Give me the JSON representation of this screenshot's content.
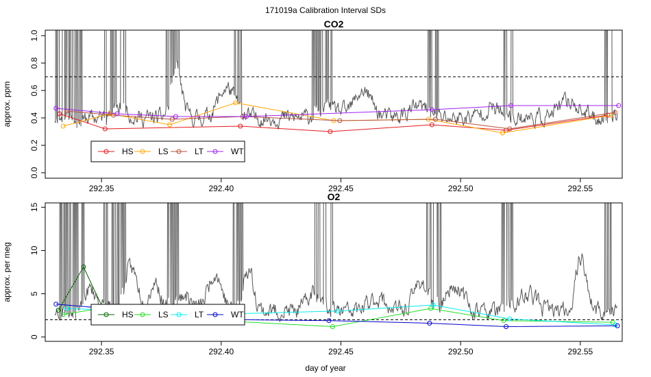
{
  "figure_title": "171019a   Calibration Interval SDs",
  "xlabel": "day of year",
  "chart_data": [
    {
      "type": "line",
      "title": "CO2",
      "ylabel": "approx. ppm",
      "xlabel": "",
      "xlim": [
        292.3265,
        292.5675
      ],
      "ylim": [
        -0.04,
        1.04
      ],
      "xticks": [
        292.35,
        292.4,
        292.45,
        292.5,
        292.55
      ],
      "xtick_labels": [
        "292.35",
        "292.40",
        "292.45",
        "292.50",
        "292.55"
      ],
      "yticks": [
        0.0,
        0.2,
        0.4,
        0.6,
        0.8,
        1.0
      ],
      "ytick_labels": [
        "0.0",
        "0.2",
        "0.4",
        "0.6",
        "0.8",
        "1.0"
      ],
      "reference_line": 0.7,
      "legend_position": "bottom-left",
      "colors": {
        "trace": "#555555",
        "HS": "#e41a1c",
        "LS": "#ffa500",
        "LT": "#b5503c",
        "WT": "#a020f0"
      },
      "trace": {
        "base": 0.4,
        "noise": 0.06,
        "seed": 11,
        "humps": [
          [
            292.357,
            0.1,
            0.004
          ],
          [
            292.381,
            0.35,
            0.003
          ],
          [
            292.402,
            0.22,
            0.005
          ],
          [
            292.445,
            0.08,
            0.006
          ],
          [
            292.459,
            0.2,
            0.005
          ],
          [
            292.482,
            0.08,
            0.006
          ],
          [
            292.513,
            0.07,
            0.006
          ],
          [
            292.545,
            0.12,
            0.006
          ]
        ],
        "spike_clusters": [
          [
            292.331,
            292.343
          ],
          [
            292.351,
            292.36
          ],
          [
            292.377,
            292.383
          ],
          [
            292.405,
            292.409
          ],
          [
            292.438,
            292.447
          ],
          [
            292.486,
            292.492
          ],
          [
            292.516,
            292.522
          ],
          [
            292.56,
            292.564
          ]
        ]
      },
      "series": [
        {
          "name": "HS",
          "x": [
            292.3325,
            292.3515,
            292.408,
            292.4455,
            292.488,
            292.519,
            292.5615
          ],
          "y": [
            0.43,
            0.32,
            0.34,
            0.3,
            0.35,
            0.31,
            0.42
          ]
        },
        {
          "name": "LS",
          "x": [
            292.334,
            292.3535,
            292.3785,
            292.406,
            292.447,
            292.4865,
            292.5175,
            292.563
          ],
          "y": [
            0.34,
            0.43,
            0.35,
            0.51,
            0.38,
            0.39,
            0.29,
            0.42
          ]
        },
        {
          "name": "LT",
          "x": [
            292.3355,
            292.355,
            292.3795,
            292.409,
            292.4495,
            292.4895,
            292.5205,
            292.5645
          ],
          "y": [
            0.45,
            0.42,
            0.39,
            0.41,
            0.38,
            0.39,
            0.32,
            0.44
          ]
        },
        {
          "name": "WT",
          "x": [
            292.331,
            292.3565,
            292.381,
            292.4105,
            292.488,
            292.521,
            292.566
          ],
          "y": [
            0.47,
            0.43,
            0.41,
            0.41,
            0.46,
            0.49,
            0.49
          ]
        }
      ]
    },
    {
      "type": "line",
      "title": "O2",
      "ylabel": "approx. per meg",
      "xlabel": "day of year",
      "xlim": [
        292.3265,
        292.5675
      ],
      "ylim": [
        -0.5,
        15.5
      ],
      "xticks": [
        292.35,
        292.4,
        292.45,
        292.5,
        292.55
      ],
      "xtick_labels": [
        "292.35",
        "292.40",
        "292.45",
        "292.50",
        "292.55"
      ],
      "yticks": [
        0,
        5,
        10,
        15
      ],
      "ytick_labels": [
        "0",
        "5",
        "10",
        "15"
      ],
      "reference_line": 2.0,
      "legend_position": "bottom-left",
      "colors": {
        "trace": "#555555",
        "HS": "#006400",
        "LS": "#22dd22",
        "LT": "#00eeee",
        "WT": "#0000cc"
      },
      "trace": {
        "base": 3.0,
        "noise": 1.0,
        "seed": 23,
        "humps": [
          [
            292.345,
            2.5,
            0.004
          ],
          [
            292.362,
            5.0,
            0.004
          ],
          [
            292.372,
            3.5,
            0.003
          ],
          [
            292.384,
            2.0,
            0.004
          ],
          [
            292.397,
            4.5,
            0.004
          ],
          [
            292.411,
            5.0,
            0.003
          ],
          [
            292.439,
            2.5,
            0.004
          ],
          [
            292.465,
            1.5,
            0.005
          ],
          [
            292.483,
            3.5,
            0.004
          ],
          [
            292.497,
            3.0,
            0.005
          ],
          [
            292.528,
            2.0,
            0.005
          ],
          [
            292.55,
            6.5,
            0.003
          ]
        ],
        "spike_clusters": [
          [
            292.331,
            292.343
          ],
          [
            292.351,
            292.36
          ],
          [
            292.377,
            292.383
          ],
          [
            292.405,
            292.409
          ],
          [
            292.438,
            292.447
          ],
          [
            292.486,
            292.492
          ],
          [
            292.516,
            292.522
          ],
          [
            292.56,
            292.564
          ]
        ]
      },
      "series": [
        {
          "name": "HS",
          "x": [
            292.332,
            292.3425,
            292.3525,
            292.4085
          ],
          "y": [
            3.1,
            8.1,
            2.2,
            2.0
          ]
        },
        {
          "name": "LS",
          "x": [
            292.334,
            292.3535,
            292.3785,
            292.4465,
            292.4875,
            292.518,
            292.5635
          ],
          "y": [
            2.6,
            3.5,
            2.2,
            1.2,
            3.3,
            1.9,
            1.7
          ]
        },
        {
          "name": "LT",
          "x": [
            292.3355,
            292.3555,
            292.38,
            292.4485,
            292.4885,
            292.5205,
            292.5645
          ],
          "y": [
            3.3,
            3.1,
            2.5,
            3.0,
            3.7,
            2.1,
            1.4
          ]
        },
        {
          "name": "WT",
          "x": [
            292.331,
            292.3565,
            292.4085,
            292.445,
            292.487,
            292.519,
            292.5655
          ],
          "y": [
            3.8,
            3.2,
            2.0,
            1.9,
            1.6,
            1.2,
            1.3
          ]
        }
      ]
    }
  ]
}
